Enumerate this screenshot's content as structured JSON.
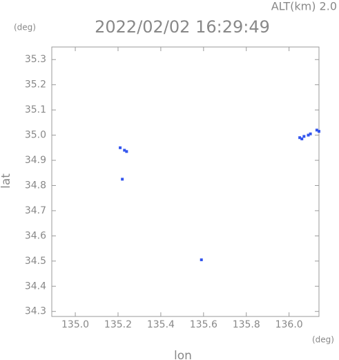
{
  "chart_data": {
    "type": "scatter",
    "title": "2022/02/02 16:29:49",
    "annotation": "ALT(km) 2.0",
    "x_label": "lon",
    "y_label": "lat",
    "x_unit": "(deg)",
    "y_unit": "(deg)",
    "color": "#3355ee",
    "x": [
      135.21,
      135.23,
      135.24,
      135.22,
      135.59,
      136.05,
      136.06,
      136.07,
      136.09,
      136.1,
      136.13,
      136.14
    ],
    "values": [
      34.95,
      34.94,
      34.935,
      34.825,
      34.505,
      34.99,
      34.985,
      34.995,
      35.0,
      35.005,
      35.02,
      35.015
    ],
    "xlim": [
      134.89,
      136.14
    ],
    "ylim": [
      34.28,
      35.35
    ],
    "xticks": [
      {
        "value": 135.0,
        "label": "135.0"
      },
      135.2,
      135.4,
      135.6,
      135.8,
      {
        "value": 136.0,
        "label": "136.0"
      }
    ],
    "yticks": [
      34.3,
      34.4,
      34.5,
      34.6,
      34.7,
      34.8,
      34.9,
      {
        "value": 35.0,
        "label": "35.0"
      },
      35.1,
      35.2,
      35.3
    ]
  }
}
